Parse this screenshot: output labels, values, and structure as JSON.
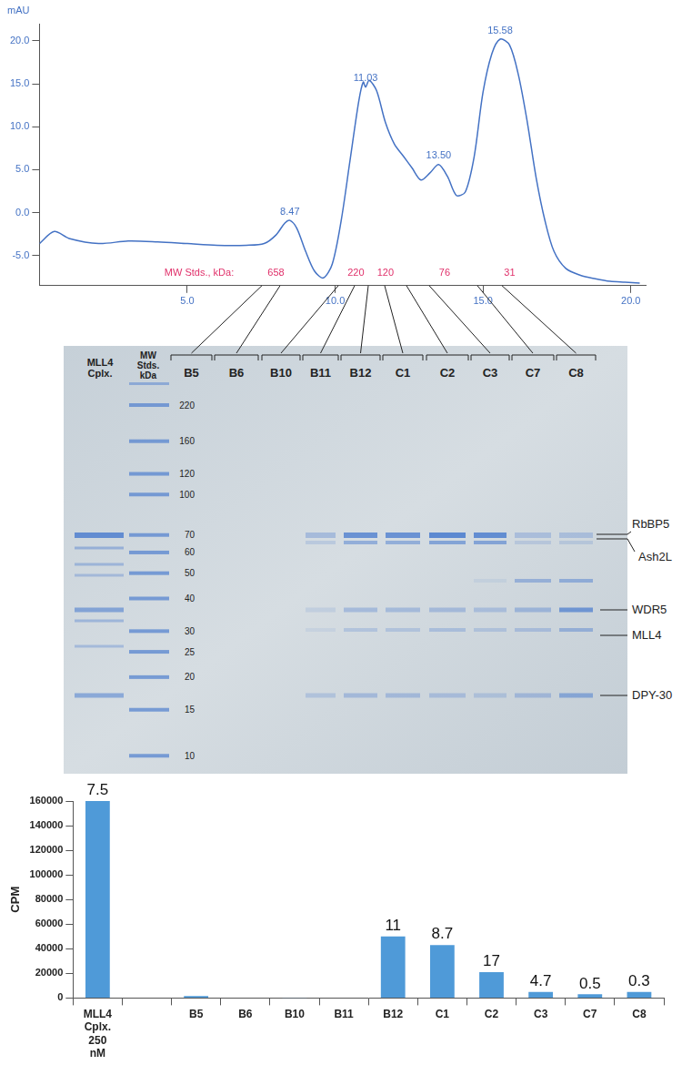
{
  "chart_data": [
    {
      "type": "line",
      "ylabel": "mAU",
      "x": [
        0,
        0.5,
        1,
        2,
        3,
        4,
        5,
        6,
        7,
        7.6,
        8.0,
        8.3,
        8.47,
        8.7,
        9.0,
        9.3,
        9.6,
        9.9,
        10.2,
        10.5,
        10.8,
        10.95,
        11.03,
        11.15,
        11.4,
        11.7,
        12.0,
        12.3,
        12.6,
        12.9,
        13.2,
        13.5,
        13.8,
        14.1,
        14.4,
        14.7,
        15.0,
        15.3,
        15.58,
        15.9,
        16.2,
        16.5,
        16.8,
        17.1,
        17.4,
        17.8,
        18.3,
        18.8,
        19.3,
        19.8,
        20.3
      ],
      "values": [
        -3.6,
        -2.2,
        -3.0,
        -3.6,
        -3.3,
        -3.4,
        -3.6,
        -3.8,
        -3.8,
        -3.6,
        -2.6,
        -1.2,
        -0.9,
        -1.8,
        -4.5,
        -6.8,
        -7.6,
        -6.0,
        -1.0,
        6.0,
        13.0,
        15.2,
        14.6,
        15.4,
        14.2,
        10.5,
        8.0,
        6.6,
        5.2,
        3.8,
        4.6,
        5.6,
        4.2,
        2.0,
        2.4,
        6.5,
        14.0,
        18.5,
        20.2,
        19.5,
        16.0,
        10.5,
        4.0,
        -1.0,
        -4.5,
        -6.5,
        -7.3,
        -7.7,
        -8.0,
        -8.1,
        -8.2
      ],
      "color": "#4472c4",
      "xlim": [
        0,
        20.5
      ],
      "xticks": [
        {
          "value": 5,
          "label": "5.0"
        },
        {
          "value": 10,
          "label": "10.0"
        },
        {
          "value": 15,
          "label": "15.0"
        },
        {
          "value": 20,
          "label": "20.0"
        }
      ],
      "ylim": [
        -8.5,
        22
      ],
      "yticks": [
        {
          "value": -5,
          "label": "-5.0"
        },
        {
          "value": 0,
          "label": "0.0"
        },
        {
          "value": 5,
          "label": "5.0"
        },
        {
          "value": 10,
          "label": "10.0"
        },
        {
          "value": 15,
          "label": "15.0"
        },
        {
          "value": 20,
          "label": "20.0"
        }
      ],
      "grid": false,
      "peaks": [
        8.47,
        11.03,
        {
          "value": 13.5,
          "label": "13.50"
        },
        15.58
      ],
      "mw_standards": {
        "label": "MW Stds., kDa:",
        "label_x": 5.4,
        "y": -7.0,
        "items": [
          {
            "x": 8.0,
            "kda": 658
          },
          {
            "x": 10.7,
            "kda": 220
          },
          {
            "x": 11.7,
            "kda": 120
          },
          {
            "x": 13.7,
            "kda": 76
          },
          {
            "x": 15.9,
            "kda": 31
          }
        ]
      }
    },
    {
      "type": "bar",
      "ylabel": "CPM",
      "categories": [
        "MLL4 Cplx. 250 nM",
        null,
        "B5",
        "B6",
        "B10",
        "B11",
        "B12",
        "C1",
        "C2",
        "C3",
        "C7",
        "C8"
      ],
      "values": [
        160000,
        null,
        1500,
        300,
        200,
        300,
        50000,
        43000,
        21000,
        5000,
        3000,
        5000
      ],
      "color": "#4f9ad8",
      "ylim": [
        0,
        160000
      ],
      "yticks": [
        0,
        20000,
        40000,
        60000,
        80000,
        100000,
        120000,
        140000,
        160000
      ],
      "grid": false,
      "annotations": [
        {
          "category": "MLL4 Cplx. 250 nM",
          "value": 7.5
        },
        {
          "category": "B12",
          "value": 11
        },
        {
          "category": "C1",
          "value": 8.7
        },
        {
          "category": "C2",
          "value": 17
        },
        {
          "category": "C3",
          "value": 4.7
        },
        {
          "category": "C7",
          "value": 0.5
        },
        {
          "category": "C8",
          "value": 0.3
        }
      ]
    }
  ],
  "gel": {
    "complex_lane": "MLL4 Cplx.",
    "marker_lane": "MW Stds. kDa",
    "marker_kda": [
      220,
      160,
      120,
      100,
      70,
      60,
      50,
      40,
      30,
      25,
      20,
      15,
      10
    ],
    "fractions": [
      "B5",
      "B6",
      "B10",
      "B11",
      "B12",
      "C1",
      "C2",
      "C3",
      "C7",
      "C8"
    ],
    "proteins": [
      "RbBP5",
      "Ash2L",
      "WDR5",
      "MLL4",
      "DPY-30"
    ]
  }
}
